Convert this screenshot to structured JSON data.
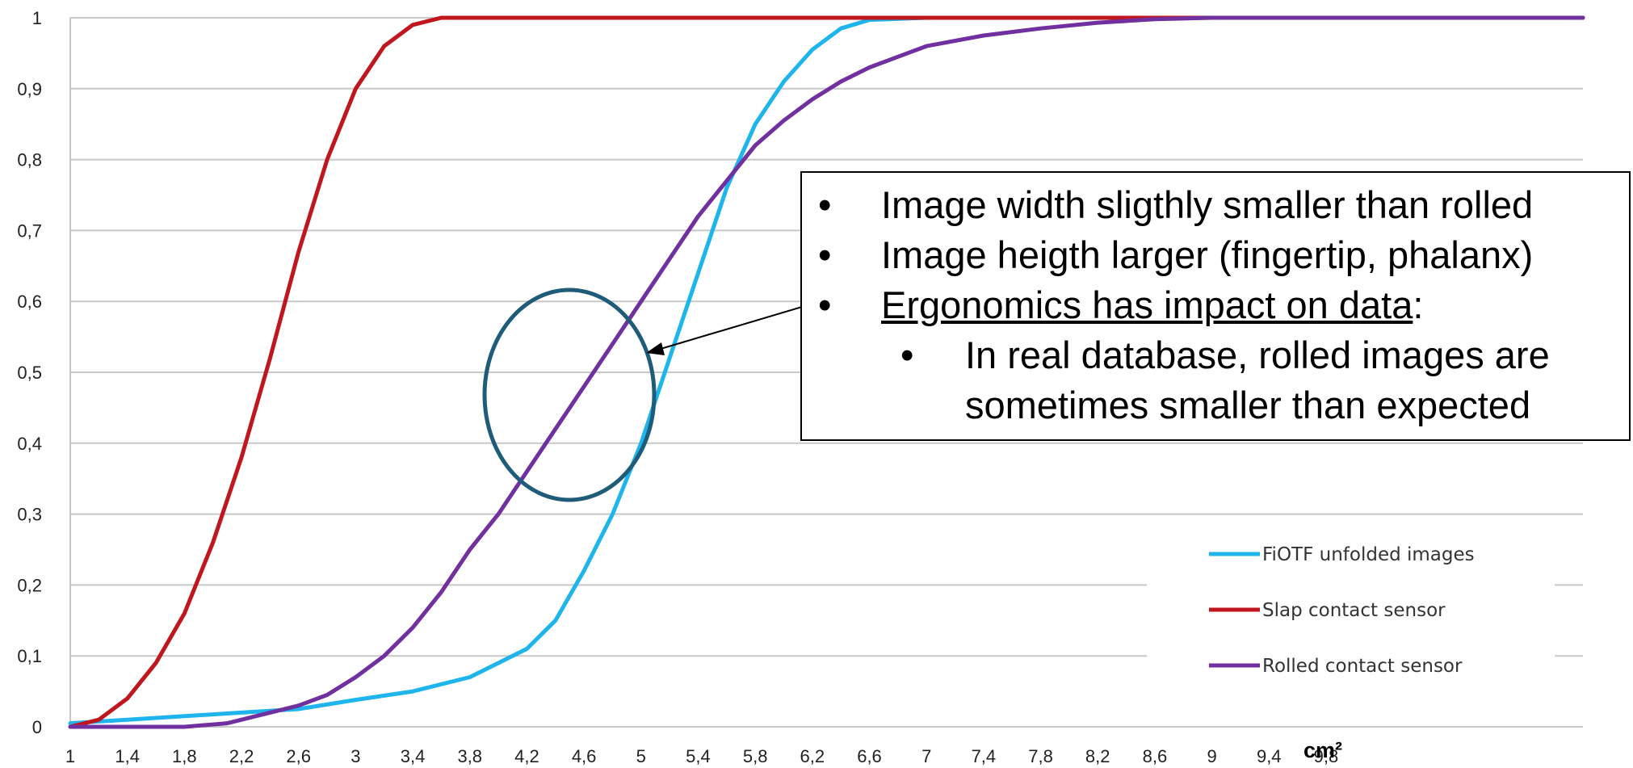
{
  "chart_data": {
    "type": "line",
    "title": "",
    "xlabel": "cm²",
    "ylabel": "",
    "xlim": [
      1,
      11.6
    ],
    "ylim": [
      0,
      1
    ],
    "x_tick_labels": [
      "1",
      "1,4",
      "1,8",
      "2,2",
      "2,6",
      "3",
      "3,4",
      "3,8",
      "4,2",
      "4,6",
      "5",
      "5,4",
      "5,8",
      "6,2",
      "6,6",
      "7",
      "7,4",
      "7,8",
      "8,2",
      "8,6",
      "9",
      "9,4",
      "9,8"
    ],
    "y_tick_labels": [
      "0",
      "0,1",
      "0,2",
      "0,3",
      "0,4",
      "0,5",
      "0,6",
      "0,7",
      "0,8",
      "0,9",
      "1"
    ],
    "grid": "horizontal",
    "legend_position": "bottom-right",
    "series": [
      {
        "name": "FiOTF unfolded images",
        "color": "#1EB4EC",
        "points": [
          [
            1,
            0.005
          ],
          [
            1.4,
            0.01
          ],
          [
            1.8,
            0.015
          ],
          [
            2.2,
            0.02
          ],
          [
            2.6,
            0.025
          ],
          [
            3,
            0.038
          ],
          [
            3.4,
            0.05
          ],
          [
            3.8,
            0.07
          ],
          [
            4.2,
            0.11
          ],
          [
            4.4,
            0.15
          ],
          [
            4.6,
            0.22
          ],
          [
            4.8,
            0.3
          ],
          [
            5,
            0.4
          ],
          [
            5.2,
            0.52
          ],
          [
            5.4,
            0.64
          ],
          [
            5.6,
            0.76
          ],
          [
            5.8,
            0.85
          ],
          [
            6,
            0.91
          ],
          [
            6.2,
            0.955
          ],
          [
            6.4,
            0.985
          ],
          [
            6.6,
            0.997
          ],
          [
            7,
            1
          ],
          [
            11.6,
            1
          ]
        ]
      },
      {
        "name": "Slap contact sensor",
        "color": "#C0171E",
        "points": [
          [
            1,
            0
          ],
          [
            1.2,
            0.01
          ],
          [
            1.4,
            0.04
          ],
          [
            1.6,
            0.09
          ],
          [
            1.8,
            0.16
          ],
          [
            2,
            0.26
          ],
          [
            2.2,
            0.38
          ],
          [
            2.4,
            0.52
          ],
          [
            2.6,
            0.67
          ],
          [
            2.8,
            0.8
          ],
          [
            3,
            0.9
          ],
          [
            3.2,
            0.96
          ],
          [
            3.4,
            0.99
          ],
          [
            3.6,
            1
          ],
          [
            11.6,
            1
          ]
        ]
      },
      {
        "name": "Rolled contact sensor",
        "color": "#7030A0",
        "points": [
          [
            1,
            0
          ],
          [
            1.4,
            0
          ],
          [
            1.8,
            0
          ],
          [
            2.1,
            0.005
          ],
          [
            2.3,
            0.015
          ],
          [
            2.6,
            0.03
          ],
          [
            2.8,
            0.045
          ],
          [
            3,
            0.07
          ],
          [
            3.2,
            0.1
          ],
          [
            3.4,
            0.14
          ],
          [
            3.6,
            0.19
          ],
          [
            3.8,
            0.25
          ],
          [
            4,
            0.3
          ],
          [
            4.2,
            0.36
          ],
          [
            4.4,
            0.42
          ],
          [
            4.6,
            0.48
          ],
          [
            4.8,
            0.54
          ],
          [
            5,
            0.6
          ],
          [
            5.2,
            0.66
          ],
          [
            5.4,
            0.72
          ],
          [
            5.6,
            0.77
          ],
          [
            5.8,
            0.82
          ],
          [
            6,
            0.855
          ],
          [
            6.2,
            0.885
          ],
          [
            6.4,
            0.91
          ],
          [
            6.6,
            0.93
          ],
          [
            6.8,
            0.945
          ],
          [
            7,
            0.96
          ],
          [
            7.4,
            0.975
          ],
          [
            7.8,
            0.985
          ],
          [
            8.2,
            0.993
          ],
          [
            8.6,
            0.998
          ],
          [
            9,
            1
          ],
          [
            11.6,
            1
          ]
        ]
      }
    ]
  },
  "callout": {
    "bullet_char": "•",
    "line1": "Image width sligthly smaller than rolled",
    "line2": "Image heigth larger (fingertip, phalanx)",
    "line3_underlined": "Ergonomics has impact on data",
    "line3_suffix": ":",
    "line4": "In real database, rolled images are",
    "line5": "sometimes smaller than expected"
  },
  "annotation": {
    "ellipse_color": "#1F5C7A",
    "arrow_color": "#000000"
  }
}
